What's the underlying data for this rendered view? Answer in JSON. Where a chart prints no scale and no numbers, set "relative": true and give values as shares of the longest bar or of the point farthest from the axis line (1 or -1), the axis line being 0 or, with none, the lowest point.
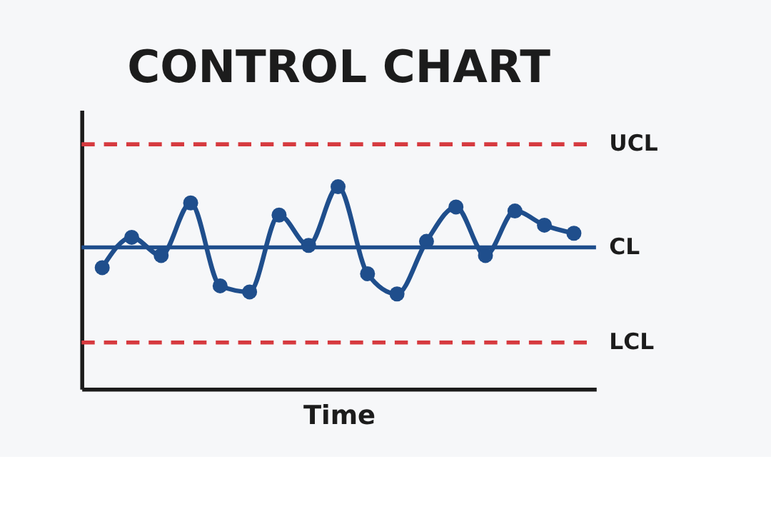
{
  "chart_data": {
    "type": "line",
    "title": "CONTROL CHART",
    "xlabel": "Time",
    "relative": true,
    "tick_labels": false,
    "grid": false,
    "marker": "circle",
    "line_style": "solid",
    "categories": [
      null,
      null,
      null,
      null,
      null,
      null,
      null,
      null,
      null,
      null,
      null,
      null,
      null,
      null,
      null,
      null,
      null
    ],
    "series": [
      {
        "color": "#1f4e8c",
        "values": [
          0.6,
          0.75,
          0.66,
          0.92,
          0.51,
          0.48,
          0.86,
          0.71,
          1.0,
          0.57,
          0.47,
          0.73,
          0.9,
          0.66,
          0.88,
          0.81,
          0.77
        ]
      }
    ],
    "ref_lines": [
      {
        "axis": "y",
        "value": 1.21,
        "label": "UCL",
        "color": "#d63a3f",
        "line_style": "dashed"
      },
      {
        "axis": "y",
        "value": 0.7,
        "label": "CL",
        "color": "#1f4e8c",
        "line_style": "solid"
      },
      {
        "axis": "y",
        "value": 0.23,
        "label": "LCL",
        "color": "#d63a3f",
        "line_style": "dashed"
      }
    ]
  }
}
